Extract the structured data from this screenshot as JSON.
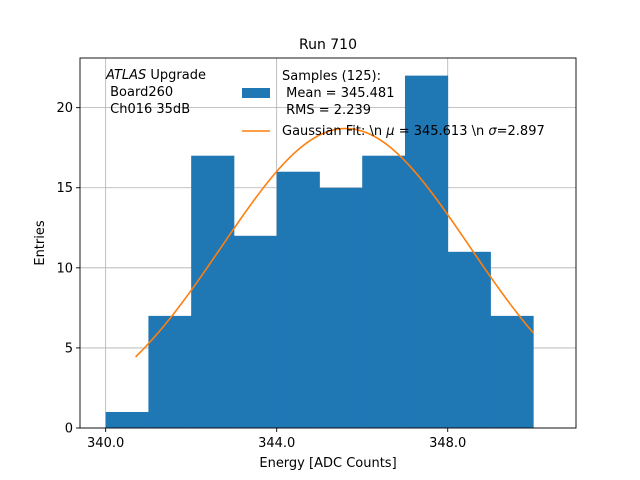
{
  "chart_data": {
    "type": "bar",
    "title": "Run 710",
    "xlabel": "Energy [ADC Counts]",
    "ylabel": "Entries",
    "xlim": [
      339.4,
      351.0
    ],
    "ylim": [
      0,
      23.1
    ],
    "grid": true,
    "xticks": [
      340,
      344,
      348
    ],
    "xtick_labels": [
      "340.0",
      "344.0",
      "348.0"
    ],
    "yticks": [
      0,
      5,
      10,
      15,
      20
    ],
    "ytick_labels": [
      "0",
      "5",
      "10",
      "15",
      "20"
    ],
    "bins": {
      "edges": [
        340,
        341,
        342,
        343,
        344,
        345,
        346,
        347,
        348,
        349,
        350
      ],
      "counts": [
        1,
        7,
        17,
        12,
        16,
        15,
        17,
        22,
        11,
        7
      ],
      "color": "#1f77b4"
    },
    "fit": {
      "mu": 345.613,
      "sigma": 2.897,
      "amplitude": 18.7,
      "x_range": [
        340.7,
        350.0
      ],
      "color": "#ff7f0e"
    },
    "annotation": {
      "line1_italic": "ATLAS",
      "line1_rest": " Upgrade",
      "line2": " Board260",
      "line3": " Ch016 35dB"
    },
    "legend": {
      "placement": "top-center",
      "samples_line1": "Samples (125):",
      "samples_line2": " Mean = 345.481",
      "samples_line3": " RMS = 2.239",
      "fit_prefix": "Gaussian Fit: \\n ",
      "fit_mu_symbol": "μ",
      "fit_mu_text": " = 345.613 \\n ",
      "fit_sigma_symbol": "σ",
      "fit_sigma_text": "=2.897"
    }
  }
}
